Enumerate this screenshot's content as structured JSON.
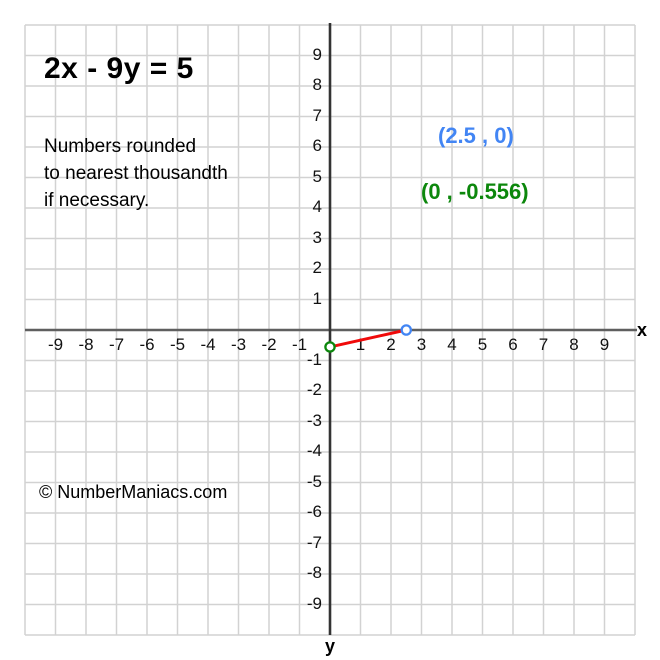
{
  "page": {
    "background": "#ffffff"
  },
  "chart_data": {
    "type": "line",
    "title": "2x - 9y = 5",
    "note_lines": [
      "Numbers rounded",
      "to nearest thousandth",
      "if necessary."
    ],
    "copyright": "© NumberManiacs.com",
    "xlabel": "x",
    "ylabel": "y",
    "xlim": [
      -10,
      10
    ],
    "ylim": [
      -10,
      10
    ],
    "x_ticks": [
      -9,
      -8,
      -7,
      -6,
      -5,
      -4,
      -3,
      -2,
      -1,
      1,
      2,
      3,
      4,
      5,
      6,
      7,
      8,
      9
    ],
    "y_ticks": [
      9,
      8,
      7,
      6,
      5,
      4,
      3,
      2,
      1,
      -1,
      -2,
      -3,
      -4,
      -5,
      -6,
      -7,
      -8,
      -9
    ],
    "grid": true,
    "grid_color": "#d2d2d2",
    "x_axis_color": "#5f5f5f",
    "y_axis_color": "#333333",
    "segment": {
      "from": {
        "x": 0,
        "y": -0.556
      },
      "to": {
        "x": 2.5,
        "y": 0
      },
      "color": "#f00a0a"
    },
    "points": [
      {
        "name": "x-intercept",
        "x": 2.5,
        "y": 0,
        "label": "(2.5 , 0)",
        "color": "#4285f4"
      },
      {
        "name": "y-intercept",
        "x": 0,
        "y": -0.556,
        "label": "(0 , -0.556)",
        "color": "#0c870c"
      }
    ]
  }
}
